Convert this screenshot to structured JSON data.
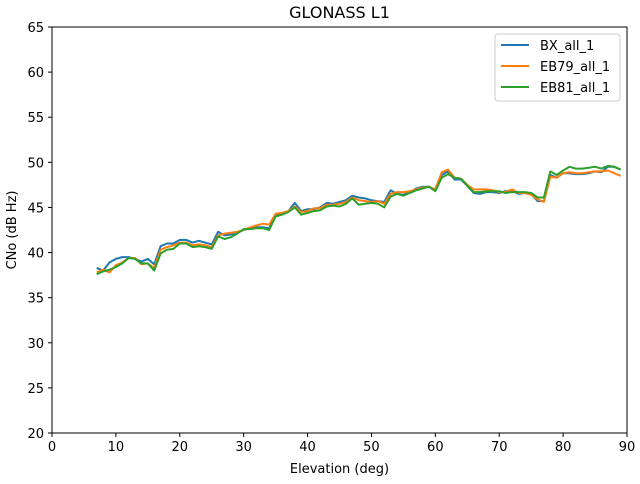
{
  "chart_data": {
    "type": "line",
    "title": "GLONASS L1",
    "xlabel": "Elevation (deg)",
    "ylabel": "CNo (dB Hz)",
    "xlim": [
      0,
      90
    ],
    "ylim": [
      20,
      65
    ],
    "xticks": [
      0,
      10,
      20,
      30,
      40,
      50,
      60,
      70,
      80,
      90
    ],
    "yticks": [
      20,
      25,
      30,
      35,
      40,
      45,
      50,
      55,
      60,
      65
    ],
    "grid": false,
    "legend_position": "top-right",
    "x": [
      7,
      8,
      9,
      10,
      11,
      12,
      13,
      14,
      15,
      16,
      17,
      18,
      19,
      20,
      21,
      22,
      23,
      24,
      25,
      26,
      27,
      28,
      29,
      30,
      31,
      32,
      33,
      34,
      35,
      36,
      37,
      38,
      39,
      40,
      41,
      42,
      43,
      44,
      45,
      46,
      47,
      48,
      49,
      50,
      51,
      52,
      53,
      54,
      55,
      56,
      57,
      58,
      59,
      60,
      61,
      62,
      63,
      64,
      65,
      66,
      67,
      68,
      69,
      70,
      71,
      72,
      73,
      74,
      75,
      76,
      77,
      78,
      79,
      80,
      81,
      82,
      83,
      84,
      85,
      86,
      87,
      88,
      89
    ],
    "series": [
      {
        "name": "BX_all_1",
        "color": "#1f77b4",
        "values": [
          38.3,
          38.0,
          38.9,
          39.3,
          39.5,
          39.5,
          39.3,
          39.0,
          39.3,
          38.7,
          40.7,
          41.0,
          41.0,
          41.4,
          41.4,
          41.1,
          41.3,
          41.1,
          40.9,
          42.3,
          41.9,
          42.0,
          42.2,
          42.5,
          42.7,
          42.8,
          42.8,
          42.7,
          44.2,
          44.3,
          44.6,
          45.5,
          44.6,
          44.8,
          44.8,
          45.0,
          45.5,
          45.4,
          45.6,
          45.8,
          46.3,
          46.1,
          46.0,
          45.8,
          45.7,
          45.6,
          46.9,
          46.5,
          46.4,
          46.7,
          47.1,
          47.3,
          47.3,
          46.9,
          48.6,
          49.0,
          48.1,
          48.1,
          47.4,
          46.6,
          46.5,
          46.7,
          46.7,
          46.6,
          46.8,
          46.9,
          46.5,
          46.6,
          46.5,
          45.7,
          45.7,
          48.6,
          48.3,
          48.8,
          48.8,
          48.7,
          48.7,
          48.8,
          49.0,
          48.9,
          49.5,
          49.5,
          49.2
        ]
      },
      {
        "name": "EB79_all_1",
        "color": "#ff7f0e",
        "values": [
          37.8,
          38.1,
          37.8,
          38.6,
          38.9,
          39.4,
          39.4,
          38.7,
          38.8,
          38.3,
          40.3,
          40.6,
          40.8,
          41.1,
          41.1,
          40.8,
          40.9,
          40.8,
          40.6,
          41.9,
          42.1,
          42.2,
          42.3,
          42.5,
          42.8,
          43.0,
          43.2,
          43.1,
          44.3,
          44.4,
          44.6,
          45.1,
          44.5,
          44.6,
          44.9,
          44.9,
          45.3,
          45.3,
          45.4,
          45.6,
          46.1,
          45.8,
          45.7,
          45.6,
          45.7,
          45.4,
          46.5,
          46.7,
          46.7,
          46.8,
          47.0,
          47.2,
          47.3,
          47.0,
          48.9,
          49.2,
          48.3,
          48.2,
          47.5,
          47.0,
          47.0,
          47.0,
          46.9,
          46.7,
          46.7,
          47.0,
          46.6,
          46.6,
          46.4,
          45.9,
          45.6,
          48.4,
          48.3,
          48.8,
          48.9,
          48.8,
          48.8,
          48.9,
          49.0,
          49.0,
          49.1,
          48.8,
          48.5
        ]
      },
      {
        "name": "EB81_all_1",
        "color": "#2ca02c",
        "values": [
          37.6,
          37.9,
          38.1,
          38.4,
          38.8,
          39.4,
          39.3,
          38.8,
          38.8,
          38.0,
          39.9,
          40.3,
          40.4,
          41.0,
          41.0,
          40.6,
          40.7,
          40.6,
          40.4,
          41.8,
          41.5,
          41.7,
          42.1,
          42.6,
          42.6,
          42.7,
          42.7,
          42.5,
          44.0,
          44.2,
          44.5,
          45.0,
          44.2,
          44.4,
          44.6,
          44.7,
          45.1,
          45.2,
          45.1,
          45.4,
          46.0,
          45.3,
          45.4,
          45.5,
          45.4,
          45.0,
          46.2,
          46.5,
          46.3,
          46.6,
          46.9,
          47.1,
          47.3,
          46.8,
          48.3,
          48.7,
          48.3,
          48.2,
          47.4,
          46.7,
          46.7,
          46.8,
          46.8,
          46.8,
          46.6,
          46.7,
          46.7,
          46.7,
          46.6,
          46.1,
          46.1,
          49.0,
          48.6,
          49.1,
          49.5,
          49.3,
          49.3,
          49.4,
          49.5,
          49.3,
          49.6,
          49.5,
          49.2
        ]
      }
    ]
  }
}
